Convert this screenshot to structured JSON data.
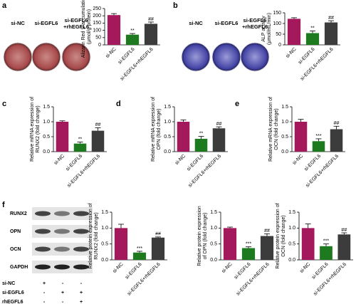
{
  "panel_labels": [
    "a",
    "b",
    "c",
    "d",
    "e",
    "f"
  ],
  "well_images": [
    {
      "labels": [
        [
          "si-NC"
        ],
        [
          "si-EGFL6"
        ],
        [
          "si-EGFL6",
          "+rhEGFL6"
        ]
      ],
      "color": "#b0454a"
    },
    {
      "labels": [
        [
          "si-NC"
        ],
        [
          "si-EGFL6"
        ],
        [
          "si-EGFL6",
          "+rhEGFL6"
        ]
      ],
      "color": "#4a4aa8"
    }
  ],
  "blot": {
    "proteins": [
      "RUNX2",
      "OPN",
      "OCN",
      "GAPDH"
    ],
    "rows": [
      {
        "name": "si-NC",
        "signs": [
          "+",
          "-",
          "-"
        ]
      },
      {
        "name": "si-EGFL6",
        "signs": [
          "-",
          "+",
          "+"
        ]
      },
      {
        "name": "rhEGFL6",
        "signs": [
          "-",
          "-",
          "+"
        ]
      }
    ]
  },
  "chart_data": [
    {
      "type": "bar",
      "ylabel": [
        "Alizarin Red S accumulation",
        "(μmol/g protein)"
      ],
      "categories": [
        "si-NC",
        "si-EGFL6",
        "si-EGFL6+rhEGFL6"
      ],
      "values": [
        205,
        70,
        145
      ],
      "errors": [
        10,
        8,
        12
      ],
      "colors": [
        "#a3195b",
        "#1e7a1e",
        "#3c3c3c"
      ],
      "ylim": [
        0,
        250
      ],
      "yticks": [
        0,
        50,
        100,
        150,
        200,
        250
      ],
      "annotations": [
        {
          "index": 1,
          "text": "**"
        },
        {
          "index": 2,
          "text": "##"
        }
      ]
    },
    {
      "type": "bar",
      "ylabel": [
        "ALP activity",
        "(μmol/mL/min)"
      ],
      "categories": [
        "si-NC",
        "si-EGFL6",
        "si-EGFL6+rhEGFL6"
      ],
      "values": [
        122,
        55,
        105
      ],
      "errors": [
        5,
        10,
        8
      ],
      "colors": [
        "#a3195b",
        "#1e7a1e",
        "#3c3c3c"
      ],
      "ylim": [
        0,
        150
      ],
      "yticks": [
        0,
        50,
        100,
        150
      ],
      "annotations": [
        {
          "index": 1,
          "text": "**"
        },
        {
          "index": 2,
          "text": "##"
        }
      ]
    },
    {
      "type": "bar",
      "ylabel": [
        "Relative mRNA expression of",
        "RUNX2  (fold change)"
      ],
      "categories": [
        "si-NC",
        "si-EGFL6",
        "si-EGFL6+rhEGFL6"
      ],
      "values": [
        1.0,
        0.27,
        0.7
      ],
      "errors": [
        0.03,
        0.05,
        0.1
      ],
      "colors": [
        "#a3195b",
        "#1e7a1e",
        "#3c3c3c"
      ],
      "ylim": [
        0,
        1.5
      ],
      "yticks": [
        {
          "value": 0,
          "label": "0.0"
        },
        0.5,
        {
          "value": 1,
          "label": "1.0"
        },
        1.5
      ],
      "annotations": [
        {
          "index": 1,
          "text": "**"
        },
        {
          "index": 2,
          "text": "##"
        }
      ]
    },
    {
      "type": "bar",
      "ylabel": [
        "Relative  mRNA expression of",
        "OPN  (fold change)"
      ],
      "categories": [
        "si-NC",
        "si-EGFL6",
        "si-EGFL6+rhEGFL6"
      ],
      "values": [
        1.0,
        0.43,
        0.78
      ],
      "errors": [
        0.06,
        0.08,
        0.05
      ],
      "colors": [
        "#a3195b",
        "#1e7a1e",
        "#3c3c3c"
      ],
      "ylim": [
        0,
        1.5
      ],
      "yticks": [
        {
          "value": 0,
          "label": "0.0"
        },
        0.5,
        {
          "value": 1,
          "label": "1.0"
        },
        1.5
      ],
      "annotations": [
        {
          "index": 1,
          "text": "**"
        },
        {
          "index": 2,
          "text": "##"
        }
      ]
    },
    {
      "type": "bar",
      "ylabel": [
        "Relative mRNA expression of",
        "OCN  (fold change)"
      ],
      "categories": [
        "si-NC",
        "si-EGFL6",
        "si-EGFL6+rhEGFL6"
      ],
      "values": [
        1.0,
        0.35,
        0.75
      ],
      "errors": [
        0.08,
        0.08,
        0.1
      ],
      "colors": [
        "#a3195b",
        "#1e7a1e",
        "#3c3c3c"
      ],
      "ylim": [
        0,
        1.5
      ],
      "yticks": [
        {
          "value": 0,
          "label": "0.0"
        },
        0.5,
        {
          "value": 1,
          "label": "1.0"
        },
        1.5
      ],
      "annotations": [
        {
          "index": 1,
          "text": "***"
        },
        {
          "index": 2,
          "text": "##"
        }
      ]
    },
    {
      "type": "bar",
      "ylabel": [
        "Relative protein expression of",
        "RUNX2  (fold change)"
      ],
      "categories": [
        "si-NC",
        "si-EGFL6",
        "si-EGFL6+rhEGFL6"
      ],
      "values": [
        1.0,
        0.23,
        0.7
      ],
      "errors": [
        0.12,
        0.04,
        0.02
      ],
      "colors": [
        "#a3195b",
        "#1e7a1e",
        "#3c3c3c"
      ],
      "ylim": [
        0,
        1.5
      ],
      "yticks": [
        {
          "value": 0,
          "label": "0.0"
        },
        0.5,
        {
          "value": 1,
          "label": "1.0"
        },
        1.5
      ],
      "annotations": [
        {
          "index": 1,
          "text": "***"
        },
        {
          "index": 2,
          "text": "##"
        }
      ]
    },
    {
      "type": "bar",
      "ylabel": [
        "Relative protein expression",
        "of OPN  (fold change)"
      ],
      "categories": [
        "si-NC",
        "si-EGFL6",
        "si-EGFL6+rhEGFL6"
      ],
      "values": [
        1.0,
        0.37,
        0.75
      ],
      "errors": [
        0.03,
        0.04,
        0.07
      ],
      "colors": [
        "#a3195b",
        "#1e7a1e",
        "#3c3c3c"
      ],
      "ylim": [
        0,
        1.5
      ],
      "yticks": [
        {
          "value": 0,
          "label": "0.0"
        },
        0.5,
        {
          "value": 1,
          "label": "1.0"
        },
        1.5
      ],
      "annotations": [
        {
          "index": 1,
          "text": "***"
        },
        {
          "index": 2,
          "text": "##"
        }
      ]
    },
    {
      "type": "bar",
      "ylabel": [
        "Relative protein expression of",
        "OCN  (fold change)"
      ],
      "categories": [
        "si-NC",
        "si-EGFL6",
        "si-EGFL6+rhEGFL6"
      ],
      "values": [
        1.0,
        0.43,
        0.8
      ],
      "errors": [
        0.13,
        0.07,
        0.05
      ],
      "colors": [
        "#a3195b",
        "#1e7a1e",
        "#3c3c3c"
      ],
      "ylim": [
        0,
        1.5
      ],
      "yticks": [
        {
          "value": 0,
          "label": "0.0"
        },
        0.5,
        {
          "value": 1,
          "label": "1.0"
        },
        1.5
      ],
      "annotations": [
        {
          "index": 1,
          "text": "***"
        },
        {
          "index": 2,
          "text": "##"
        }
      ]
    }
  ]
}
